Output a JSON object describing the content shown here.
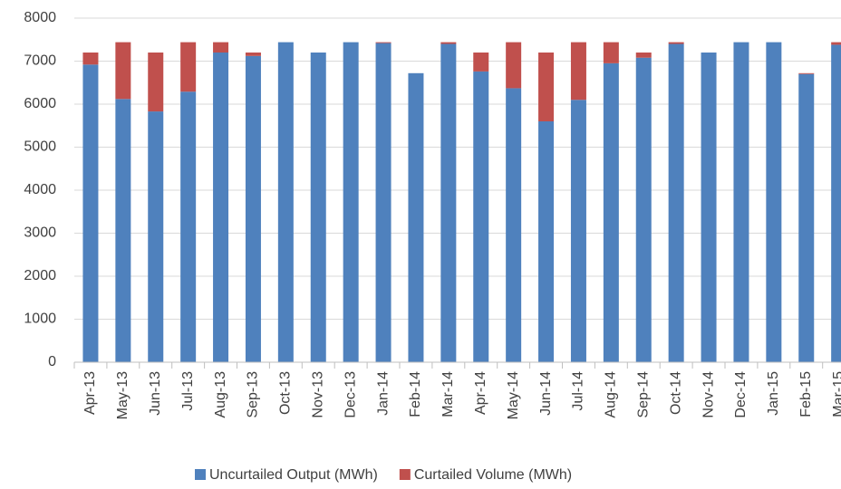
{
  "chart_data": {
    "type": "stacked_bar",
    "categories": [
      "Apr-13",
      "May-13",
      "Jun-13",
      "Jul-13",
      "Aug-13",
      "Sep-13",
      "Oct-13",
      "Nov-13",
      "Dec-13",
      "Jan-14",
      "Feb-14",
      "Mar-14",
      "Apr-14",
      "May-14",
      "Jun-14",
      "Jul-14",
      "Aug-14",
      "Sep-14",
      "Oct-14",
      "Nov-14",
      "Dec-14",
      "Jan-15",
      "Feb-15",
      "Mar-15"
    ],
    "series": [
      {
        "name": "Uncurtailed Output (MWh)",
        "color": "#4f81bd",
        "values": [
          6920,
          6120,
          5830,
          6290,
          7200,
          7120,
          7440,
          7200,
          7440,
          7420,
          6720,
          7400,
          6760,
          6370,
          5600,
          6100,
          6950,
          7080,
          7400,
          7200,
          7440,
          7440,
          6700,
          7380
        ]
      },
      {
        "name": "Curtailed Volume (MWh)",
        "color": "#c0504d",
        "values": [
          280,
          1320,
          1370,
          1150,
          240,
          80,
          0,
          0,
          0,
          20,
          0,
          40,
          440,
          1070,
          1600,
          1340,
          490,
          120,
          40,
          0,
          0,
          0,
          20,
          60
        ]
      }
    ],
    "ylim": [
      0,
      8000
    ],
    "yticks": [
      0,
      1000,
      2000,
      3000,
      4000,
      5000,
      6000,
      7000,
      8000
    ],
    "grid": true,
    "legend": "bottom"
  }
}
